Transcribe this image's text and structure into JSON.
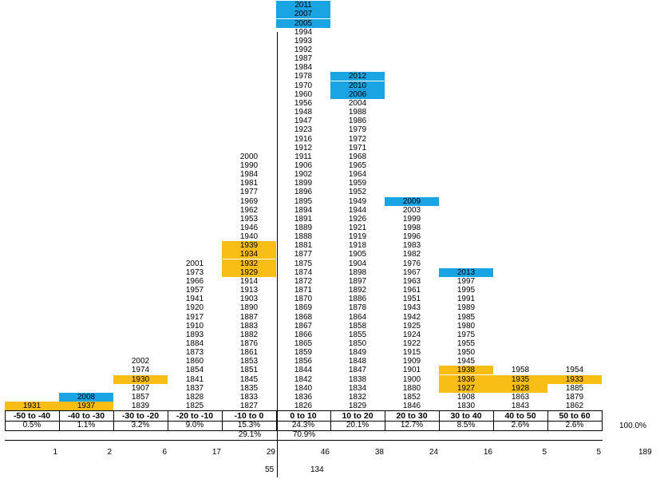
{
  "chart_data": {
    "type": "table",
    "title": "",
    "highlight_colors": {
      "orange": "#f9be16",
      "blue": "#1aa4e4"
    },
    "bins": [
      {
        "label": "-50 to -40",
        "years": [
          "1931"
        ],
        "orange": [
          "1931"
        ],
        "blue": [],
        "percent": "0.5%",
        "count": "1"
      },
      {
        "label": "-40 to -30",
        "years": [
          "1937",
          "2008"
        ],
        "orange": [
          "1937"
        ],
        "blue": [
          "2008"
        ],
        "percent": "1.1%",
        "count": "2"
      },
      {
        "label": "-30 to -20",
        "years": [
          "1839",
          "1857",
          "1907",
          "1930",
          "1974",
          "2002"
        ],
        "orange": [
          "1930"
        ],
        "blue": [],
        "percent": "3.2%",
        "count": "6"
      },
      {
        "label": "-20 to -10",
        "years": [
          "1825",
          "1828",
          "1837",
          "1841",
          "1854",
          "1860",
          "1873",
          "1884",
          "1893",
          "1910",
          "1917",
          "1920",
          "1941",
          "1957",
          "1966",
          "1973",
          "2001"
        ],
        "orange": [],
        "blue": [],
        "percent": "9.0%",
        "count": "17"
      },
      {
        "label": "-10 to 0",
        "years": [
          "1827",
          "1833",
          "1835",
          "1845",
          "1851",
          "1853",
          "1861",
          "1876",
          "1882",
          "1883",
          "1887",
          "1890",
          "1903",
          "1913",
          "1914",
          "1929",
          "1932",
          "1934",
          "1939",
          "1940",
          "1946",
          "1953",
          "1962",
          "1969",
          "1977",
          "1981",
          "1984",
          "1990",
          "2000"
        ],
        "orange": [
          "1929",
          "1932",
          "1934",
          "1939"
        ],
        "blue": [],
        "percent": "15.3%",
        "count": "29"
      },
      {
        "label": "0 to 10",
        "years": [
          "1826",
          "1836",
          "1840",
          "1842",
          "1844",
          "1856",
          "1859",
          "1865",
          "1866",
          "1867",
          "1868",
          "1869",
          "1870",
          "1871",
          "1872",
          "1874",
          "1875",
          "1877",
          "1881",
          "1888",
          "1889",
          "1891",
          "1894",
          "1895",
          "1896",
          "1899",
          "1902",
          "1906",
          "1911",
          "1912",
          "1916",
          "1923",
          "1947",
          "1948",
          "1956",
          "1960",
          "1970",
          "1978",
          "1984",
          "1987",
          "1992",
          "1993",
          "1994",
          "2005",
          "2007",
          "2011"
        ],
        "orange": [],
        "blue": [
          "2005",
          "2007",
          "2011"
        ],
        "percent": "24.3%",
        "count": "46"
      },
      {
        "label": "10 to 20",
        "years": [
          "1829",
          "1832",
          "1834",
          "1838",
          "1847",
          "1848",
          "1849",
          "1850",
          "1855",
          "1858",
          "1864",
          "1878",
          "1886",
          "1892",
          "1897",
          "1898",
          "1904",
          "1905",
          "1918",
          "1919",
          "1921",
          "1926",
          "1944",
          "1949",
          "1952",
          "1959",
          "1964",
          "1965",
          "1968",
          "1971",
          "1972",
          "1979",
          "1986",
          "1988",
          "2004",
          "2006",
          "2010",
          "2012"
        ],
        "orange": [],
        "blue": [
          "2006",
          "2010",
          "2012"
        ],
        "percent": "20.1%",
        "count": "38"
      },
      {
        "label": "20 to 30",
        "years": [
          "1846",
          "1852",
          "1880",
          "1900",
          "1901",
          "1909",
          "1915",
          "1922",
          "1924",
          "1925",
          "1942",
          "1943",
          "1951",
          "1961",
          "1963",
          "1967",
          "1976",
          "1982",
          "1983",
          "1996",
          "1998",
          "1999",
          "2003",
          "2009"
        ],
        "orange": [],
        "blue": [
          "2009"
        ],
        "percent": "12.7%",
        "count": "24"
      },
      {
        "label": "30 to 40",
        "years": [
          "1830",
          "1908",
          "1927",
          "1936",
          "1938",
          "1945",
          "1950",
          "1955",
          "1975",
          "1980",
          "1985",
          "1989",
          "1991",
          "1995",
          "1997",
          "2013"
        ],
        "orange": [
          "1927",
          "1936",
          "1938"
        ],
        "blue": [
          "2013"
        ],
        "percent": "8.5%",
        "count": "16"
      },
      {
        "label": "40 to 50",
        "years": [
          "1843",
          "1863",
          "1928",
          "1935",
          "1958"
        ],
        "orange": [
          "1928",
          "1935"
        ],
        "blue": [],
        "percent": "2.6%",
        "count": "5"
      },
      {
        "label": "50 to 60",
        "years": [
          "1862",
          "1879",
          "1885",
          "1933",
          "1954"
        ],
        "orange": [
          "1933"
        ],
        "blue": [],
        "percent": "2.6%",
        "count": "5"
      }
    ],
    "total_percent": "100.0%",
    "total_count": "189",
    "negative_percent": "29.1%",
    "positive_percent": "70.9%",
    "negative_count": "55",
    "positive_count": "134"
  }
}
